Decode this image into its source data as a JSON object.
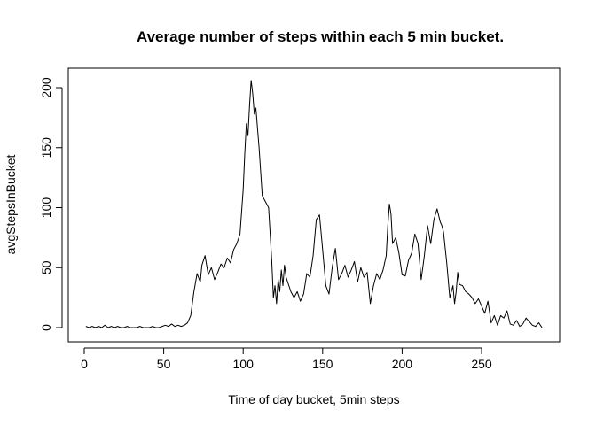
{
  "chart_data": {
    "type": "line",
    "title": "Average number of steps within each 5 min bucket.",
    "xlabel": "Time of day bucket, 5min steps",
    "ylabel": "avgStepsInBucket",
    "xlim": [
      0,
      288
    ],
    "ylim": [
      0,
      206
    ],
    "xticks": [
      0,
      50,
      100,
      150,
      200,
      250
    ],
    "yticks": [
      0,
      50,
      100,
      150,
      200
    ],
    "grid": false,
    "series": [
      {
        "color": "#000000",
        "x": [
          1,
          3,
          5,
          7,
          9,
          11,
          13,
          15,
          17,
          19,
          21,
          23,
          25,
          27,
          29,
          31,
          33,
          35,
          37,
          39,
          41,
          43,
          45,
          47,
          49,
          51,
          53,
          55,
          57,
          59,
          61,
          63,
          65,
          67,
          69,
          71,
          73,
          74,
          76,
          78,
          80,
          82,
          84,
          86,
          88,
          90,
          92,
          94,
          96,
          98,
          100,
          101,
          102,
          103,
          104,
          105,
          106,
          107,
          108,
          110,
          112,
          114,
          116,
          118,
          119,
          120,
          121,
          122,
          123,
          124,
          125,
          126,
          127,
          128,
          130,
          132,
          134,
          136,
          138,
          140,
          142,
          144,
          146,
          148,
          150,
          152,
          154,
          156,
          158,
          160,
          162,
          164,
          166,
          168,
          170,
          172,
          174,
          176,
          178,
          180,
          182,
          184,
          186,
          188,
          190,
          191,
          192,
          193,
          194,
          196,
          198,
          200,
          202,
          204,
          206,
          208,
          210,
          212,
          214,
          216,
          218,
          220,
          222,
          224,
          225,
          226,
          228,
          230,
          232,
          233,
          234,
          235,
          236,
          238,
          240,
          242,
          244,
          246,
          248,
          250,
          252,
          254,
          256,
          258,
          260,
          262,
          264,
          266,
          268,
          270,
          272,
          274,
          276,
          278,
          280,
          282,
          284,
          286,
          288
        ],
        "y": [
          1,
          0,
          1,
          0,
          1,
          0,
          2,
          0,
          1,
          0,
          1,
          0,
          0,
          1,
          0,
          0,
          0,
          1,
          0,
          0,
          0,
          1,
          0,
          0,
          1,
          2,
          1,
          3,
          1,
          2,
          1,
          2,
          4,
          10,
          30,
          45,
          38,
          52,
          60,
          44,
          50,
          40,
          46,
          53,
          50,
          58,
          54,
          65,
          70,
          78,
          115,
          145,
          170,
          160,
          185,
          206,
          195,
          178,
          183,
          150,
          110,
          105,
          100,
          55,
          25,
          35,
          20,
          40,
          30,
          48,
          35,
          52,
          42,
          38,
          30,
          25,
          30,
          22,
          28,
          45,
          42,
          60,
          90,
          94,
          65,
          35,
          28,
          50,
          66,
          40,
          45,
          52,
          42,
          48,
          55,
          38,
          50,
          42,
          46,
          20,
          35,
          45,
          40,
          48,
          60,
          85,
          103,
          95,
          70,
          75,
          62,
          44,
          43,
          56,
          62,
          78,
          70,
          40,
          60,
          85,
          70,
          90,
          99,
          88,
          85,
          80,
          55,
          25,
          35,
          20,
          30,
          46,
          36,
          35,
          30,
          28,
          25,
          20,
          24,
          18,
          12,
          22,
          4,
          10,
          2,
          10,
          8,
          14,
          3,
          2,
          6,
          1,
          3,
          8,
          5,
          2,
          1,
          4,
          0
        ]
      }
    ]
  }
}
